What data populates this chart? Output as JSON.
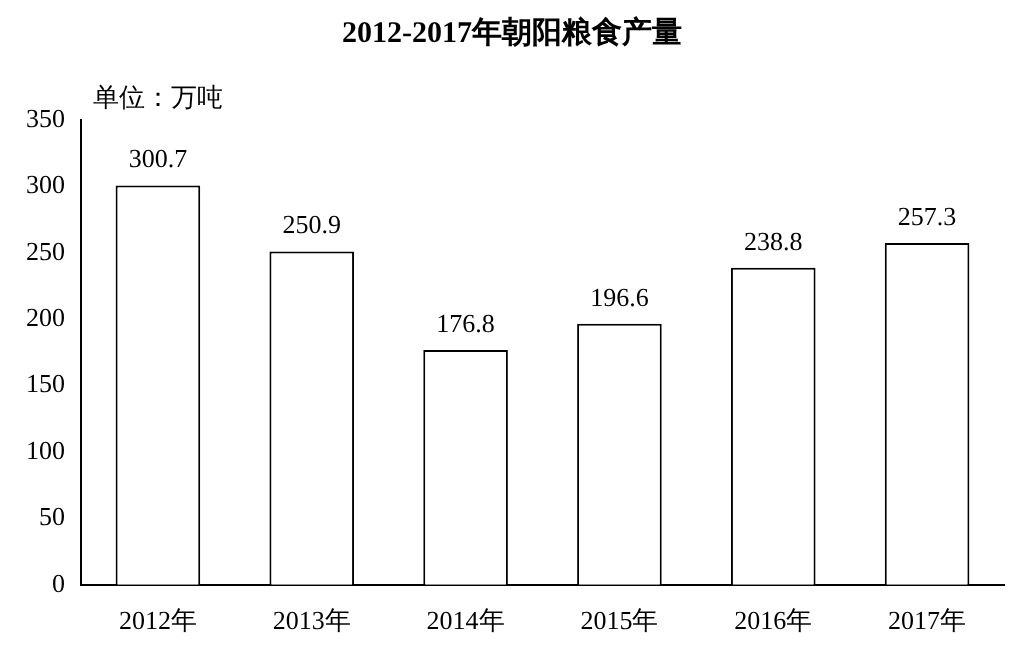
{
  "chart_data": {
    "type": "bar",
    "title": "2012-2017年朝阳粮食产量",
    "annotations": [
      "单位：万吨"
    ],
    "categories": [
      "2012年",
      "2013年",
      "2014年",
      "2015年",
      "2016年",
      "2017年"
    ],
    "values": [
      300.7,
      250.9,
      176.8,
      196.6,
      238.8,
      257.3
    ],
    "color": "#ffffff",
    "ylim": [
      0,
      350
    ],
    "yticks": [
      0,
      50,
      100,
      150,
      200,
      250,
      300,
      350
    ],
    "grid": false,
    "data_labels": true
  }
}
